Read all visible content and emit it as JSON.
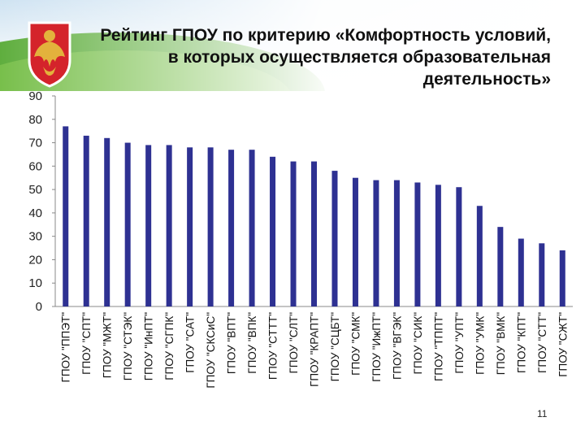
{
  "slide": {
    "title": "Рейтинг ГПОУ по критерию «Комфортность условий, в которых осуществляется образовательная деятельность»",
    "page_number": "11"
  },
  "colors": {
    "bar": "#2e3192",
    "axis": "#888888",
    "emblem_red": "#d4232b",
    "emblem_gold": "#e3b23c"
  },
  "icons": {
    "emblem": "komi-coat-of-arms-icon"
  },
  "chart_data": {
    "type": "bar",
    "title": "",
    "xlabel": "",
    "ylabel": "",
    "ylim": [
      0,
      90
    ],
    "yticks": [
      0,
      10,
      20,
      30,
      40,
      50,
      60,
      70,
      80,
      90
    ],
    "grid": false,
    "legend": "none",
    "categories": [
      "ГПОУ \"ППЭТ\"",
      "ГПОУ \"СПТ\"",
      "ГПОУ \"МЖТ\"",
      "ГПОУ \"СТЭК\"",
      "ГПОУ \"ИнПТ\"",
      "ГПОУ \"СГПК\"",
      "ГПОУ \"САТ\"",
      "ГПОУ \"СКСиС\"",
      "ГПОУ \"ВПТ\"",
      "ГПОУ \"ВПК\"",
      "ГПОУ \"СТТТ\"",
      "ГПОУ \"СЛТ\"",
      "ГПОУ \"КРАПТ\"",
      "ГПОУ \"СЦБТ\"",
      "ГПОУ \"СМК\"",
      "ГПОУ \"ИжПТ\"",
      "ГПОУ \"ВГЭК\"",
      "ГПОУ \"СИК\"",
      "ГПОУ \"ТППТ\"",
      "ГПОУ \"УПТ\"",
      "ГПОУ \"УМК\"",
      "ГПОУ \"ВМК\"",
      "ГПОУ \"КПТ\"",
      "ГПОУ \"СТТ\"",
      "ГПОУ \"СЖТ\""
    ],
    "values": [
      77,
      73,
      72,
      70,
      69,
      69,
      68,
      68,
      67,
      67,
      64,
      62,
      62,
      58,
      55,
      54,
      54,
      53,
      52,
      51,
      43,
      34,
      29,
      27,
      24
    ]
  }
}
